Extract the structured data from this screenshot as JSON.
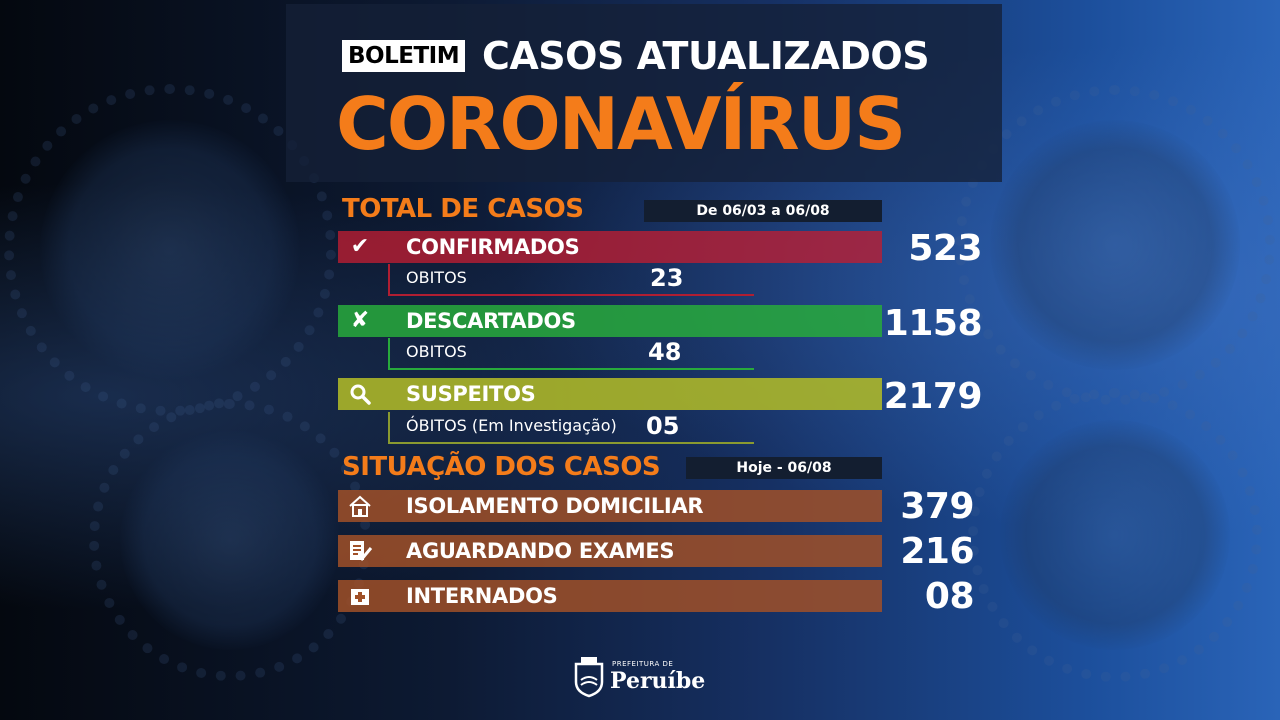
{
  "header": {
    "badge": "BOLETIM",
    "subtitle": "CASOS ATUALIZADOS",
    "title": "CORONAVÍRUS"
  },
  "total": {
    "title": "TOTAL DE CASOS",
    "period": "De 06/03 a 06/08",
    "confirmados": {
      "label": "CONFIRMADOS",
      "value": "523",
      "icon": "check-icon",
      "obitos_label": "OBITOS",
      "obitos_value": "23"
    },
    "descartados": {
      "label": "DESCARTADOS",
      "value": "1158",
      "icon": "x-icon",
      "obitos_label": "OBITOS",
      "obitos_value": "48"
    },
    "suspeitos": {
      "label": "SUSPEITOS",
      "value": "2179",
      "icon": "search-icon",
      "obitos_label": "ÓBITOS (Em Investigação)",
      "obitos_value": "05"
    }
  },
  "situacao": {
    "title": "SITUAÇÃO DOS CASOS",
    "date": "Hoje - 06/08",
    "items": [
      {
        "label": "ISOLAMENTO DOMICILIAR",
        "value": "379",
        "icon": "house-icon"
      },
      {
        "label": "AGUARDANDO EXAMES",
        "value": "216",
        "icon": "document-pen-icon"
      },
      {
        "label": "INTERNADOS",
        "value": "08",
        "icon": "hospital-icon"
      }
    ]
  },
  "logo": {
    "small": "PREFEITURA DE",
    "name": "Peruíbe"
  },
  "colors": {
    "orange": "#f47c1a",
    "red": "#be1e32",
    "green": "#28aa3c",
    "yellow": "#afb928",
    "brown": "#a05028"
  }
}
